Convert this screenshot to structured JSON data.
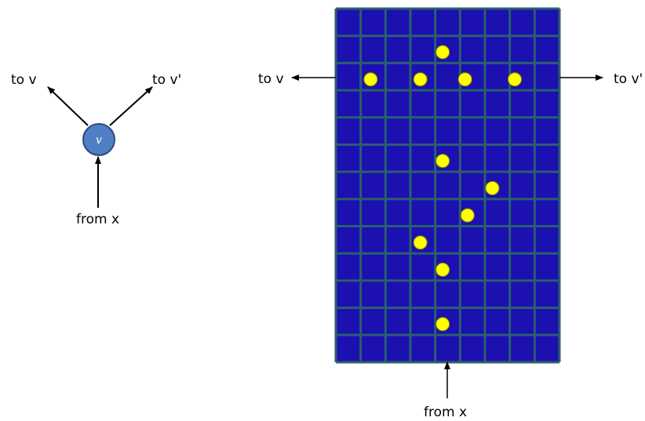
{
  "left_diagram": {
    "node_label": "v",
    "to_v_label": "to v",
    "to_v_prime_label": "to v'",
    "from_x_label": "from x"
  },
  "right_diagram": {
    "to_v_label": "to v",
    "to_v_prime_label": "to v'",
    "from_x_label": "from x",
    "grid": {
      "columns": 9,
      "rows": 13,
      "fill_color": "#1C10B0",
      "line_color": "#2B5E6E",
      "dot_color": "#FFFF00"
    },
    "dots": [
      {
        "col": 4.3,
        "row": 1.6
      },
      {
        "col": 1.4,
        "row": 2.6
      },
      {
        "col": 3.4,
        "row": 2.6
      },
      {
        "col": 5.2,
        "row": 2.6
      },
      {
        "col": 7.2,
        "row": 2.6
      },
      {
        "col": 4.3,
        "row": 5.6
      },
      {
        "col": 6.3,
        "row": 6.6
      },
      {
        "col": 5.3,
        "row": 7.6
      },
      {
        "col": 3.4,
        "row": 8.6
      },
      {
        "col": 4.3,
        "row": 9.6
      },
      {
        "col": 4.3,
        "row": 11.6
      }
    ]
  }
}
